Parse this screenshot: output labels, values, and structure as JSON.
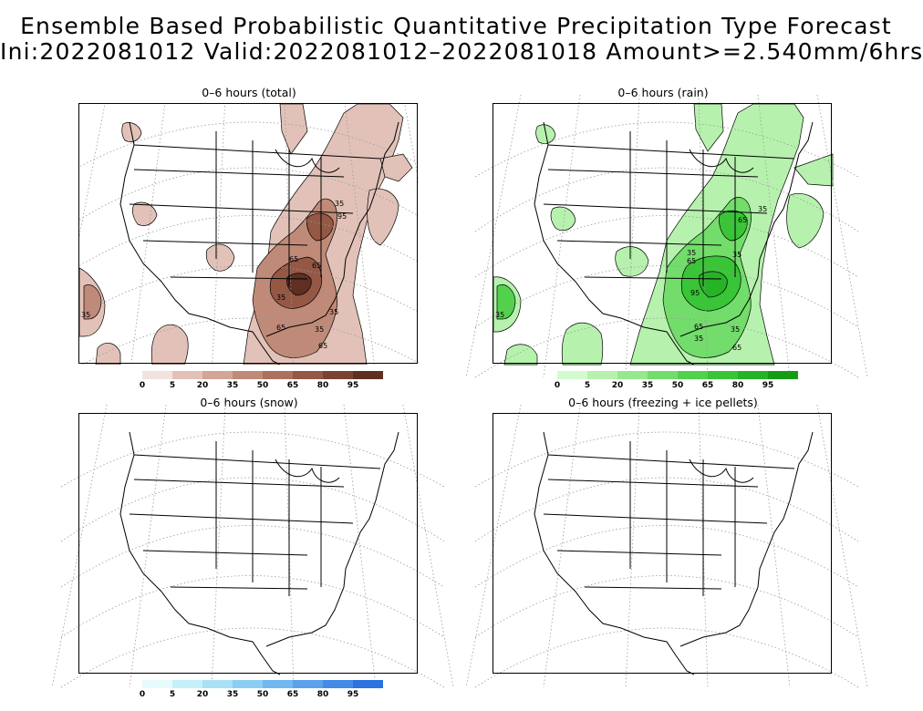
{
  "title": {
    "line1": "Ensemble Based Probabilistic Quantitative Precipitation Type Forecast",
    "line2": "Ini:2022081012 Valid:2022081012–2022081018 Amount>=2.540mm/6hrs"
  },
  "panels": [
    {
      "id": "total",
      "title": "0–6 hours (total)"
    },
    {
      "id": "rain",
      "title": "0–6 hours (rain)"
    },
    {
      "id": "snow",
      "title": "0–6 hours (snow)"
    },
    {
      "id": "frz",
      "title": "0–6 hours (freezing + ice pellets)"
    }
  ],
  "colorbars": {
    "total": {
      "ticks": [
        "0",
        "5",
        "20",
        "35",
        "50",
        "65",
        "80",
        "95"
      ],
      "colors": [
        "#f3e3df",
        "#e2c2b8",
        "#d2a596",
        "#c08a78",
        "#ac705d",
        "#945845",
        "#7a4232",
        "#5f2f22"
      ]
    },
    "rain": {
      "ticks": [
        "0",
        "5",
        "20",
        "35",
        "50",
        "65",
        "80",
        "95"
      ],
      "colors": [
        "#d4fbd0",
        "#b6f2ad",
        "#95e98c",
        "#72dd6b",
        "#52d14d",
        "#3ac437",
        "#27b326",
        "#149d14"
      ]
    },
    "snow": {
      "ticks": [
        "0",
        "5",
        "20",
        "35",
        "50",
        "65",
        "80",
        "95"
      ],
      "colors": [
        "#e6fbfd",
        "#c6f0f9",
        "#a8e0f6",
        "#8ccdf3",
        "#72b7ef",
        "#5ba1eb",
        "#438be6",
        "#2c72e0"
      ]
    }
  },
  "contour_labels": {
    "total": [
      "35",
      "65",
      "95",
      "35",
      "65",
      "35",
      "65",
      "35",
      "35",
      "65"
    ],
    "rain": [
      "65",
      "35",
      "65",
      "35",
      "95",
      "65",
      "35",
      "35",
      "65",
      "35",
      "35"
    ]
  },
  "map_colors": {
    "outline": "#000000",
    "graticule": "#9a9a9a"
  }
}
